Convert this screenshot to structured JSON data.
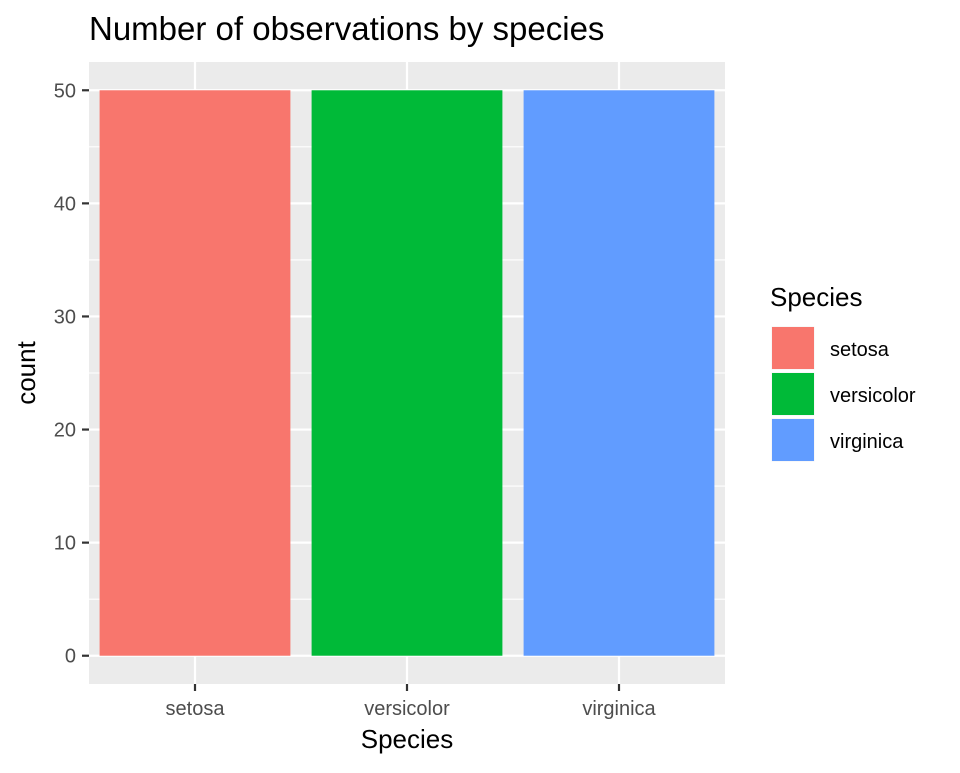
{
  "chart_data": {
    "type": "bar",
    "title": "Number of observations by species",
    "xlabel": "Species",
    "ylabel": "count",
    "categories": [
      "setosa",
      "versicolor",
      "virginica"
    ],
    "values": [
      50,
      50,
      50
    ],
    "colors": [
      "#F8766D",
      "#00BA38",
      "#619CFF"
    ],
    "ylim": [
      -2.5,
      52.5
    ],
    "yticks": [
      0,
      10,
      20,
      30,
      40,
      50
    ],
    "ytick_labels": [
      "0",
      "10",
      "20",
      "30",
      "40",
      "50"
    ],
    "grid": true,
    "panel_background": "#EBEBEB",
    "grid_color": "#FFFFFF",
    "legend": {
      "title": "Species",
      "position": "right",
      "items": [
        "setosa",
        "versicolor",
        "virginica"
      ]
    }
  }
}
